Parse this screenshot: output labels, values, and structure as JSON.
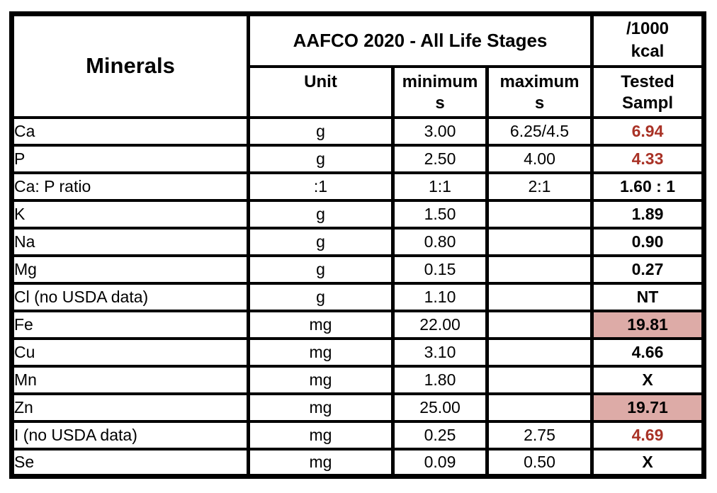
{
  "table": {
    "header": {
      "minerals": "Minerals",
      "aafco_title": "AAFCO 2020 - All Life Stages",
      "per_kcal_lines": [
        "/1000",
        "kcal"
      ],
      "unit": "Unit",
      "minimums_lines": [
        "minimum",
        "s"
      ],
      "maximums_lines": [
        "maximum",
        "s"
      ],
      "tested_lines": [
        "Tested",
        "Sampl"
      ]
    },
    "columns": [
      "Minerals",
      "Unit",
      "minimums",
      "maximums",
      "Tested Sampl"
    ],
    "rows": [
      {
        "mineral": "Ca",
        "unit": "g",
        "minimum": "3.00",
        "maximum": "6.25/4.5",
        "tested": "6.94",
        "tested_style": "red"
      },
      {
        "mineral": "P",
        "unit": "g",
        "minimum": "2.50",
        "maximum": "4.00",
        "tested": "4.33",
        "tested_style": "red"
      },
      {
        "mineral": "Ca: P ratio",
        "unit": ":1",
        "minimum": "1:1",
        "maximum": "2:1",
        "tested": "1.60 : 1",
        "tested_style": "black"
      },
      {
        "mineral": "K",
        "unit": "g",
        "minimum": "1.50",
        "maximum": "",
        "tested": "1.89",
        "tested_style": "black"
      },
      {
        "mineral": "Na",
        "unit": "g",
        "minimum": "0.80",
        "maximum": "",
        "tested": "0.90",
        "tested_style": "black"
      },
      {
        "mineral": "Mg",
        "unit": "g",
        "minimum": "0.15",
        "maximum": "",
        "tested": "0.27",
        "tested_style": "black"
      },
      {
        "mineral": "Cl (no USDA data)",
        "unit": "g",
        "minimum": "1.10",
        "maximum": "",
        "tested": "NT",
        "tested_style": "black"
      },
      {
        "mineral": "Fe",
        "unit": "mg",
        "minimum": "22.00",
        "maximum": "",
        "tested": "19.81",
        "tested_style": "highlight"
      },
      {
        "mineral": "Cu",
        "unit": "mg",
        "minimum": "3.10",
        "maximum": "",
        "tested": "4.66",
        "tested_style": "black"
      },
      {
        "mineral": "Mn",
        "unit": "mg",
        "minimum": "1.80",
        "maximum": "",
        "tested": "X",
        "tested_style": "black"
      },
      {
        "mineral": "Zn",
        "unit": "mg",
        "minimum": "25.00",
        "maximum": "",
        "tested": "19.71",
        "tested_style": "highlight"
      },
      {
        "mineral": "I (no USDA data)",
        "unit": "mg",
        "minimum": "0.25",
        "maximum": "2.75",
        "tested": "4.69",
        "tested_style": "red"
      },
      {
        "mineral": "Se",
        "unit": "mg",
        "minimum": "0.09",
        "maximum": "0.50",
        "tested": "X",
        "tested_style": "black"
      }
    ],
    "colors": {
      "exceeds_text": "#A93226",
      "deficient_highlight_bg": "#DDABA7",
      "border": "#000000",
      "background": "#FFFFFF"
    }
  }
}
